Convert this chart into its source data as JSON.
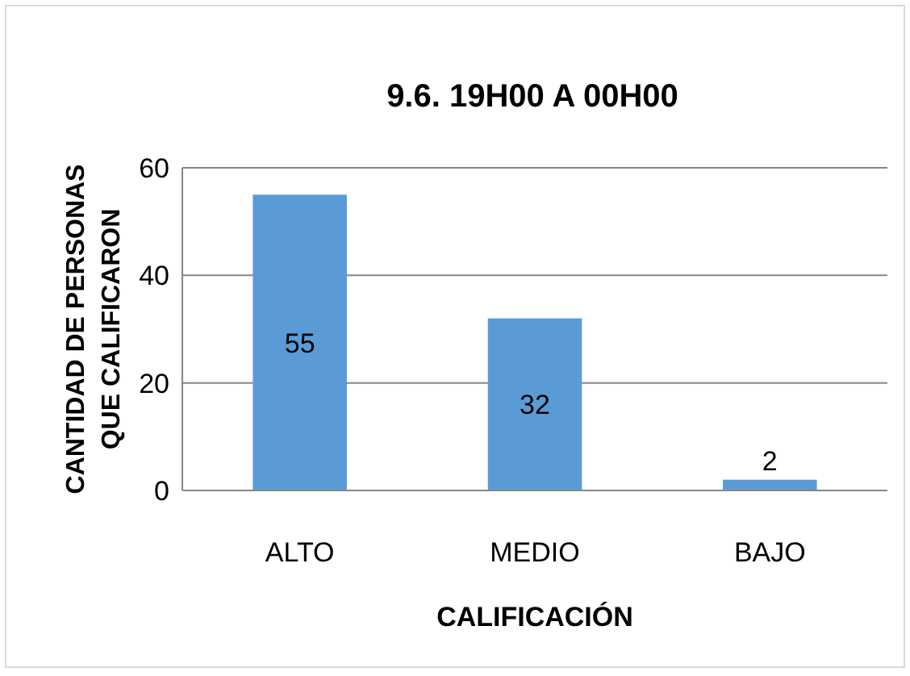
{
  "chart_data": {
    "type": "bar",
    "title": "9.6. 19H00 A 00H00",
    "xlabel": "CALIFICACIÓN",
    "ylabel": "CANTIDAD DE PERSONAS\nQUE CALIFICARON",
    "categories": [
      "ALTO",
      "MEDIO",
      "BAJO"
    ],
    "values": [
      55,
      32,
      2
    ],
    "color": "#5b9bd5",
    "ylim": [
      0,
      60
    ],
    "yticks": [
      0,
      20,
      40,
      60
    ],
    "grid": "y",
    "data_labels": true
  }
}
